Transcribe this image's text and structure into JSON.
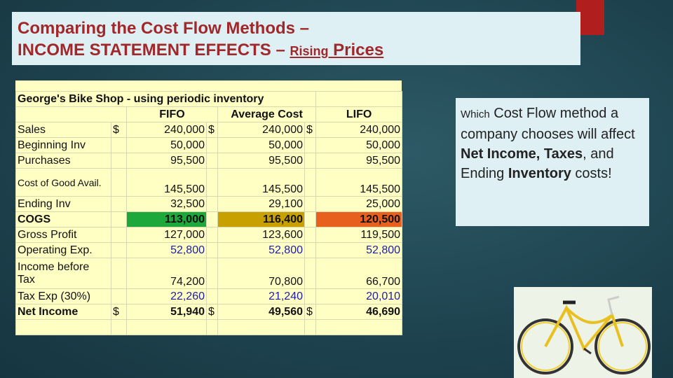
{
  "title": {
    "line1": "Comparing the Cost Flow Methods –",
    "line2": "INCOME STATEMENT EFFECTS –",
    "line2_small": "Rising",
    "line2_end": "Prices"
  },
  "table": {
    "caption": "George's Bike Shop - using periodic inventory",
    "columns": [
      "FIFO",
      "Average Cost",
      "LIFO"
    ],
    "rows": [
      {
        "label": "Sales",
        "dollar": "$",
        "values": [
          "240,000",
          "240,000",
          "240,000"
        ]
      },
      {
        "label": "Beginning Inv",
        "values": [
          "50,000",
          "50,000",
          "50,000"
        ]
      },
      {
        "label": "Purchases",
        "values": [
          "95,500",
          "95,500",
          "95,500"
        ]
      },
      {
        "label": "Cost of Good Avail.",
        "values": [
          "145,500",
          "145,500",
          "145,500"
        ]
      },
      {
        "label": "Ending Inv",
        "values": [
          "32,500",
          "29,100",
          "25,000"
        ]
      },
      {
        "label": "COGS",
        "values": [
          "113,000",
          "116,400",
          "120,500"
        ]
      },
      {
        "label": "Gross Profit",
        "values": [
          "127,000",
          "123,600",
          "119,500"
        ]
      },
      {
        "label": "Operating Exp.",
        "values": [
          "52,800",
          "52,800",
          "52,800"
        ]
      },
      {
        "label": "Income before Tax",
        "values": [
          "74,200",
          "70,800",
          "66,700"
        ]
      },
      {
        "label": "Tax Exp (30%)",
        "values": [
          "22,260",
          "21,240",
          "20,010"
        ]
      },
      {
        "label": "Net Income",
        "dollar": "$",
        "values": [
          "51,940",
          "49,560",
          "46,690"
        ]
      }
    ]
  },
  "note": {
    "segments": [
      "Which",
      " Cost Flow method a company chooses will affect ",
      "Net Income, Taxes",
      ", and Ending ",
      "Inventory",
      " costs!"
    ]
  }
}
